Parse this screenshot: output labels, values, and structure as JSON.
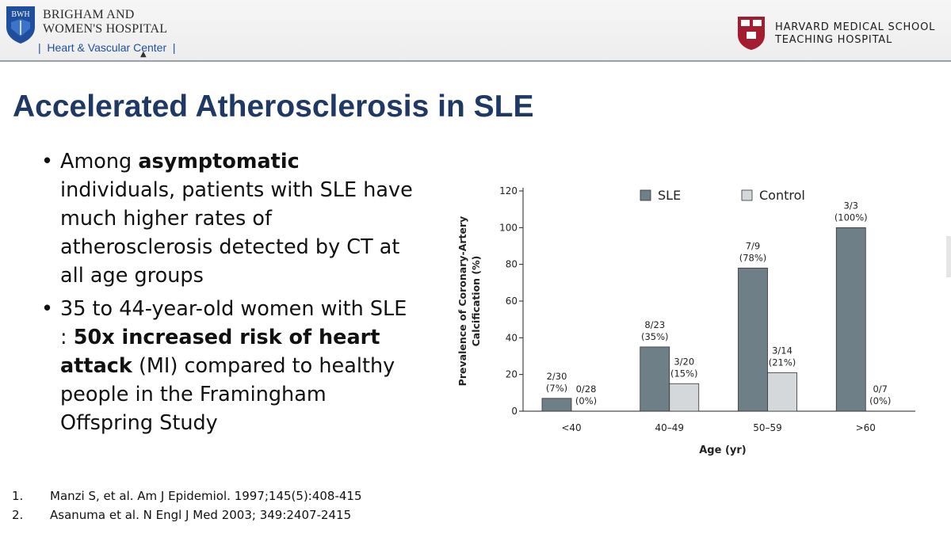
{
  "header": {
    "bwh_logo_text": "BWH",
    "bwh_line1": "BRIGHAM AND",
    "bwh_line2": "WOMEN'S HOSPITAL",
    "department": "|  Heart & Vascular Center  |",
    "hms_line1": "HARVARD MEDICAL SCHOOL",
    "hms_line2": "TEACHING HOSPITAL"
  },
  "title": "Accelerated Atherosclerosis in SLE",
  "bullets": [
    {
      "parts": [
        {
          "text": "Among ",
          "bold": false
        },
        {
          "text": "asymptomatic",
          "bold": true
        },
        {
          "text": " individuals, patients with SLE have much higher rates of atherosclerosis detected by CT at all age groups",
          "bold": false
        }
      ]
    },
    {
      "parts": [
        {
          "text": "35 to 44-year-old women with SLE : ",
          "bold": false
        },
        {
          "text": "50x increased risk of heart attack",
          "bold": true
        },
        {
          "text": " (MI) compared to healthy people in the Framingham Offspring Study",
          "bold": false
        }
      ]
    }
  ],
  "references": [
    {
      "num": "1.",
      "text": "Manzi S, et al. Am J Epidemiol. 1997;145(5):408-415"
    },
    {
      "num": "2.",
      "text": "Asanuma et al. N Engl J Med 2003; 349:2407-2415"
    }
  ],
  "chart_data": {
    "type": "bar",
    "categories": [
      "<40",
      "40–49",
      "50–59",
      ">60"
    ],
    "series": [
      {
        "name": "SLE",
        "color": "#6e7f88",
        "values": [
          7,
          35,
          78,
          100
        ],
        "labels": [
          [
            "2/30",
            "(7%)"
          ],
          [
            "8/23",
            "(35%)"
          ],
          [
            "7/9",
            "(78%)"
          ],
          [
            "3/3",
            "(100%)"
          ]
        ]
      },
      {
        "name": "Control",
        "color": "#d4d8da",
        "values": [
          0,
          15,
          21,
          0
        ],
        "labels": [
          [
            "0/28",
            "(0%)"
          ],
          [
            "3/20",
            "(15%)"
          ],
          [
            "3/14",
            "(21%)"
          ],
          [
            "0/7",
            "(0%)"
          ]
        ]
      }
    ],
    "xlabel": "Age (yr)",
    "ylabel_lines": [
      "Prevalence of Coronary-Artery",
      "Calcification (%)"
    ],
    "ylim": [
      0,
      120
    ],
    "yticks": [
      0,
      20,
      40,
      60,
      80,
      100,
      120
    ],
    "legend_position": "top",
    "grid": false
  }
}
